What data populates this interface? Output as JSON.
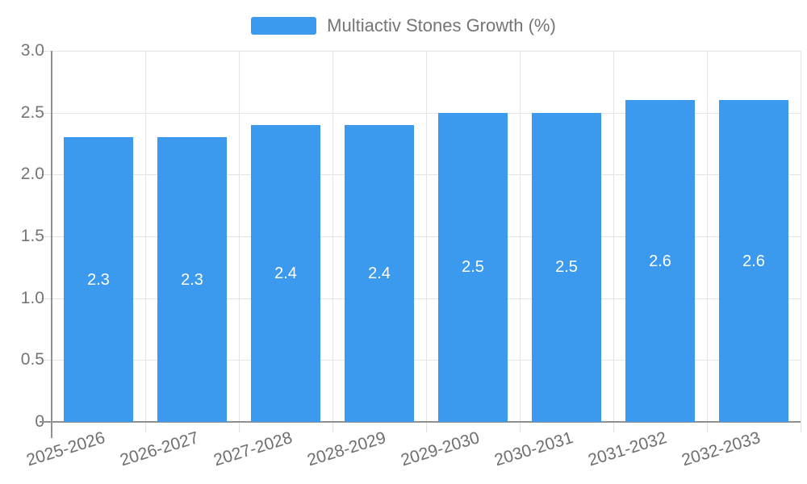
{
  "chart": {
    "legend_label": "Multiactiv Stones Growth (%)"
  },
  "chart_data": {
    "type": "bar",
    "title": "Multiactiv Stones Growth (%)",
    "categories": [
      "2025-2026",
      "2026-2027",
      "2027-2028",
      "2028-2029",
      "2029-2030",
      "2030-2031",
      "2031-2032",
      "2032-2033"
    ],
    "values": [
      2.3,
      2.3,
      2.4,
      2.4,
      2.5,
      2.5,
      2.6,
      2.6
    ],
    "data_labels": [
      "2.3",
      "2.3",
      "2.4",
      "2.4",
      "2.5",
      "2.5",
      "2.6",
      "2.6"
    ],
    "series": [
      {
        "name": "Multiactiv Stones Growth (%)",
        "values": [
          2.3,
          2.3,
          2.4,
          2.4,
          2.5,
          2.5,
          2.6,
          2.6
        ]
      }
    ],
    "xlabel": "",
    "ylabel": "",
    "ylim": [
      0,
      3.0
    ],
    "ytick_labels": [
      "0",
      "0.5",
      "1.0",
      "1.5",
      "2.0",
      "2.5",
      "3.0"
    ],
    "ytick_values": [
      0,
      0.5,
      1.0,
      1.5,
      2.0,
      2.5,
      3.0
    ],
    "grid": true,
    "legend_position": "top-center",
    "bar_color": "#3b99ee",
    "bar_label_color": "#ffffff"
  }
}
